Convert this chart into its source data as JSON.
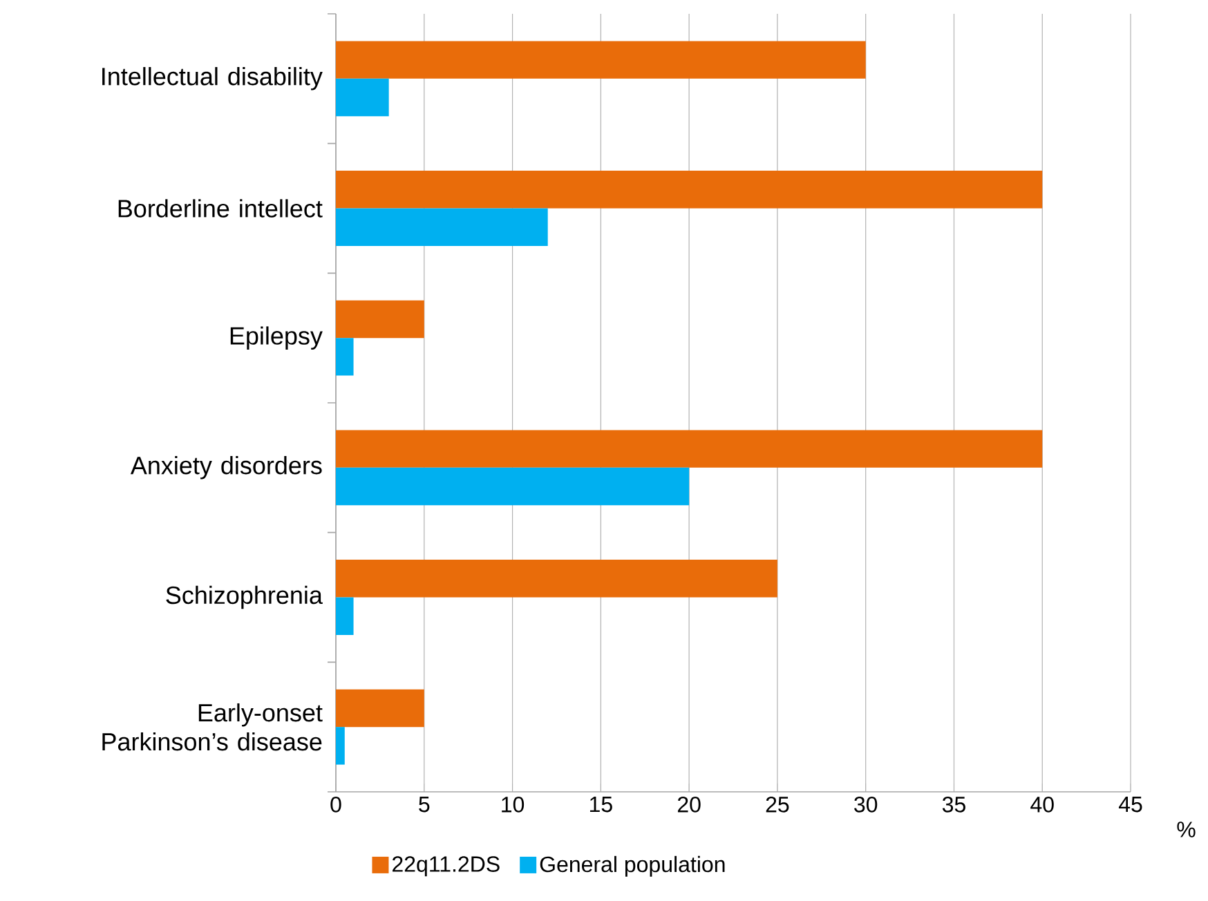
{
  "chart_data": {
    "type": "bar",
    "orientation": "horizontal",
    "categories": [
      "Intellectual disability",
      "Borderline intellect",
      "Epilepsy",
      "Anxiety disorders",
      "Schizophrenia",
      "Early-onset Parkinson’s disease"
    ],
    "series": [
      {
        "name": "22q11.2DS",
        "color": "#e96c0a",
        "values": [
          30,
          40,
          5,
          40,
          25,
          5
        ]
      },
      {
        "name": "General population",
        "color": "#00b0f0",
        "values": [
          3,
          12,
          1,
          20,
          1,
          0.5
        ]
      }
    ],
    "xlim": [
      0,
      45
    ],
    "xticks": [
      0,
      5,
      10,
      15,
      20,
      25,
      30,
      35,
      40,
      45
    ],
    "xlabel": "%",
    "grid": "x",
    "legend": "bottom"
  }
}
